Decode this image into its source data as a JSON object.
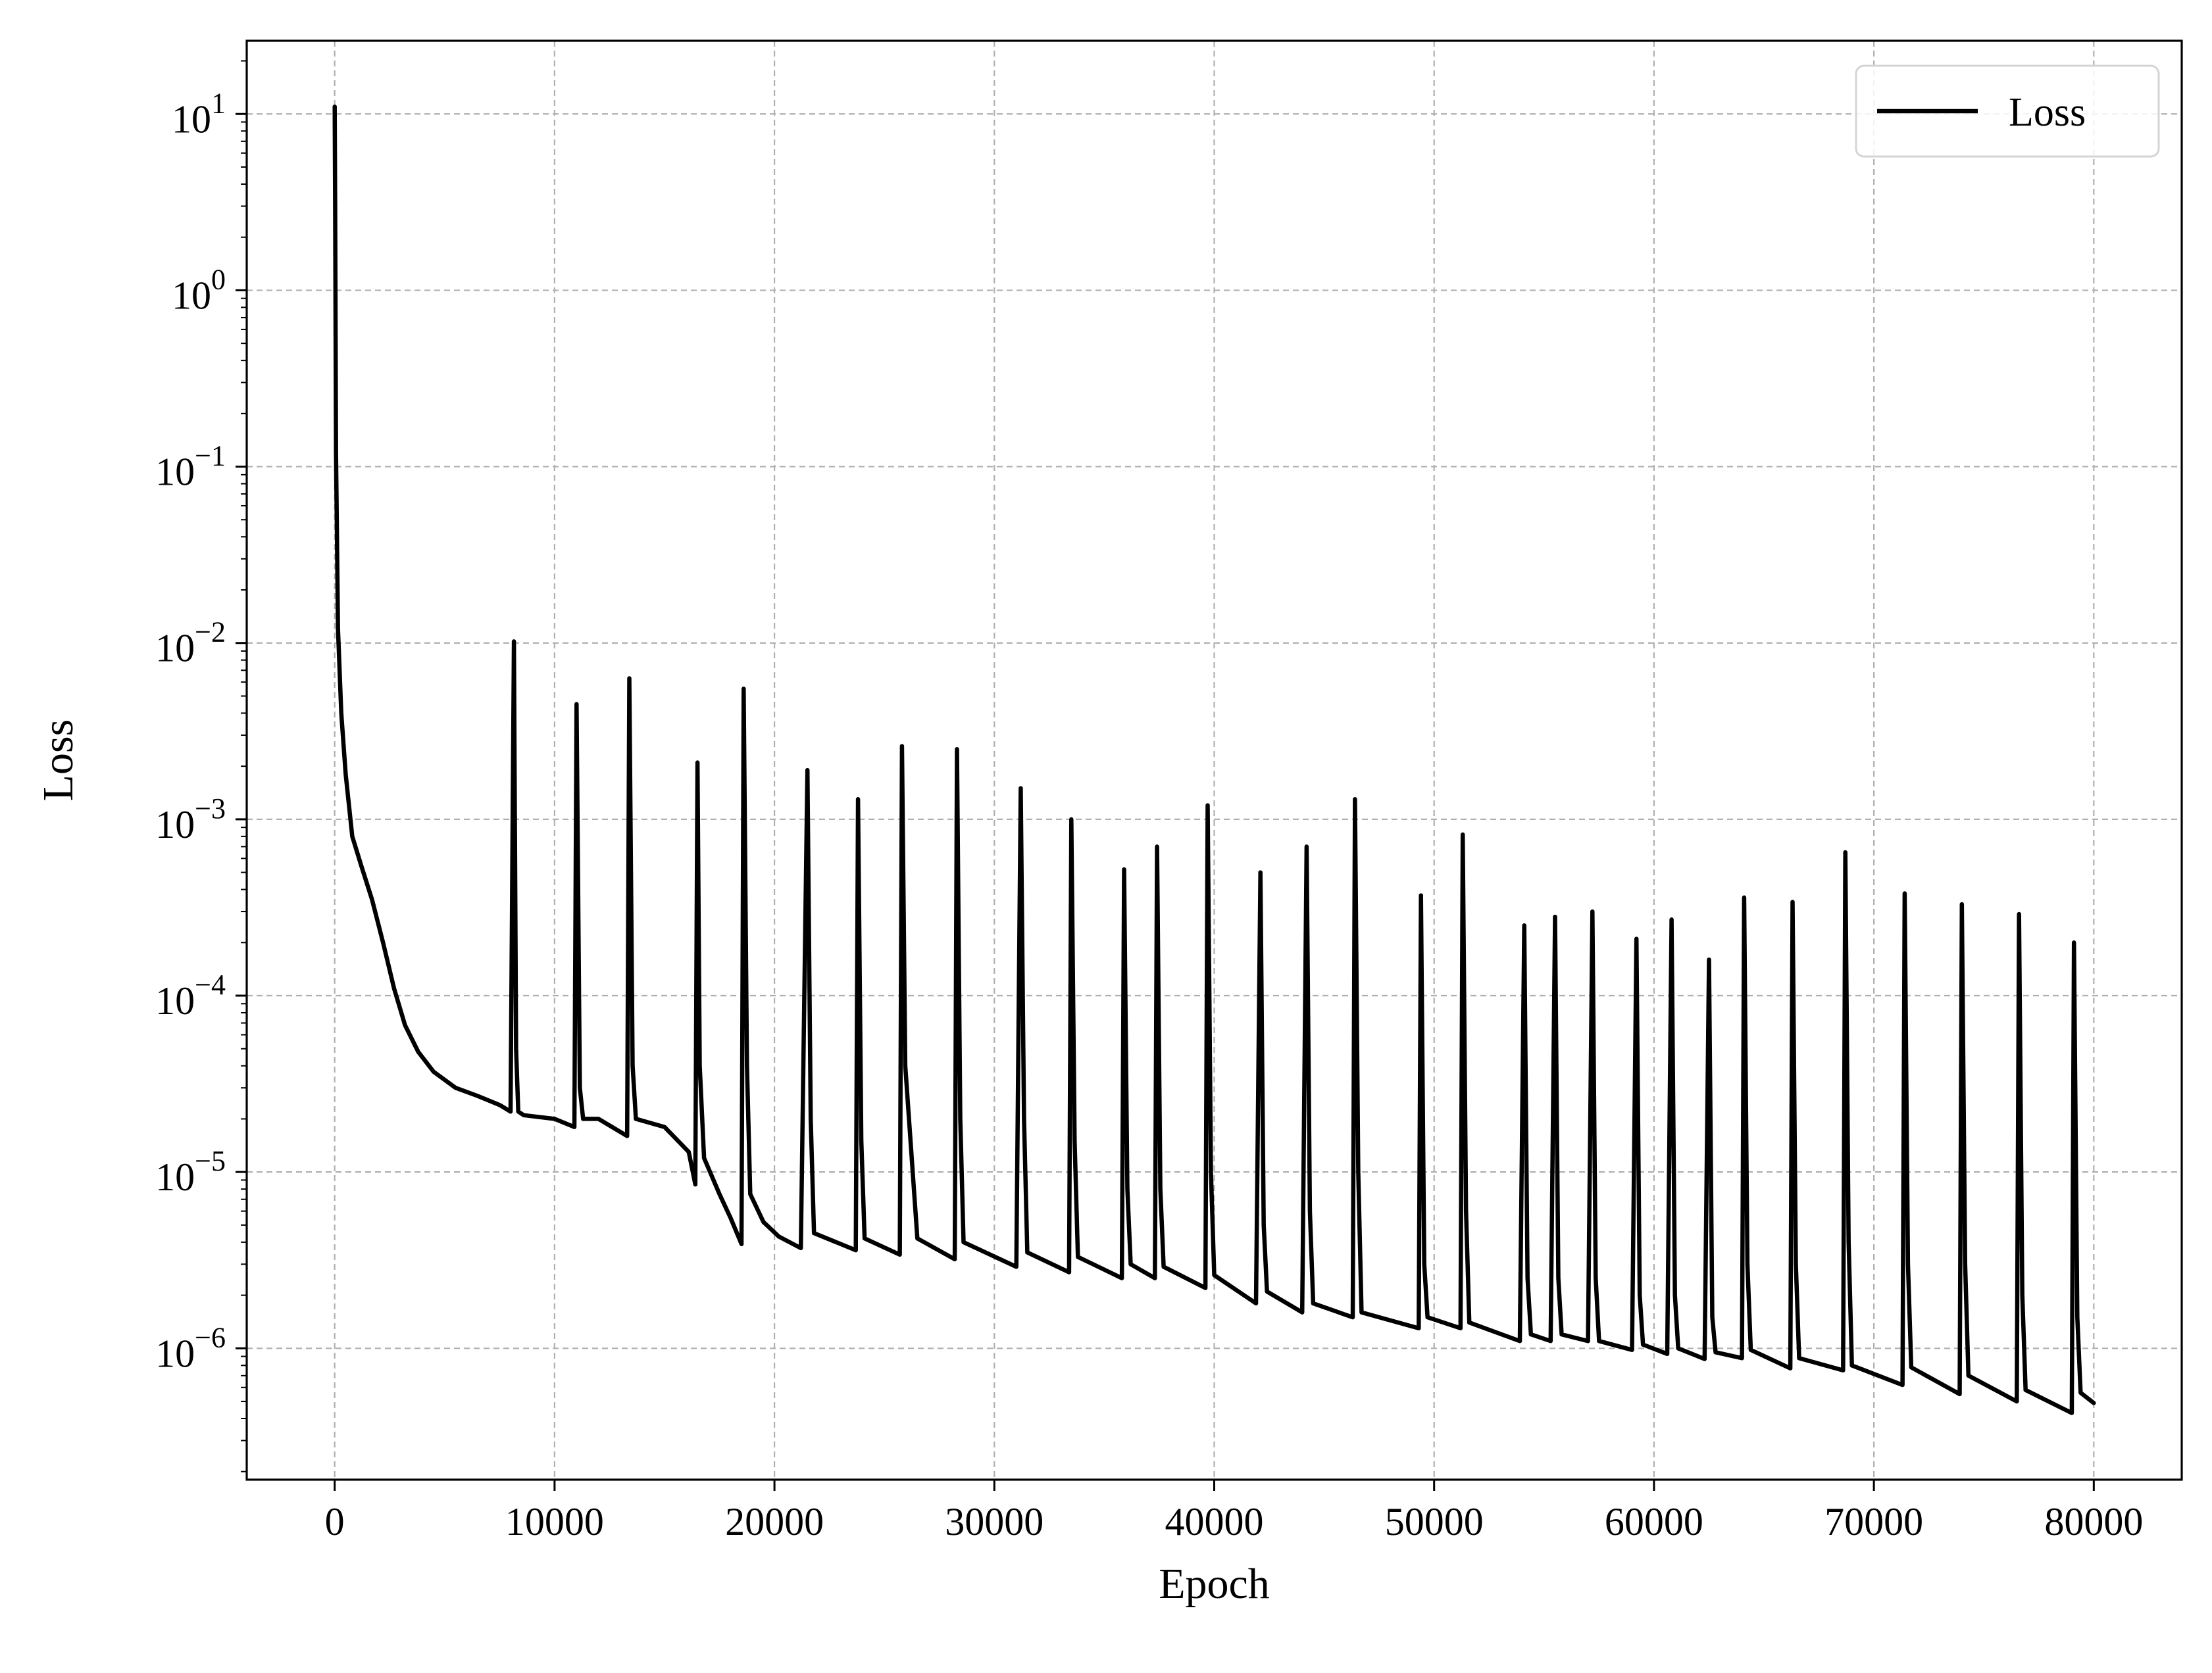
{
  "chart_data": {
    "type": "line",
    "title": "",
    "xlabel": "Epoch",
    "ylabel": "Loss",
    "xlim": [
      -4000,
      84000
    ],
    "ylim": [
      1.8e-07,
      26
    ],
    "yscale": "log",
    "grid": true,
    "legend": {
      "position": "top-right",
      "entries": [
        "Loss"
      ]
    },
    "xticks": [
      0,
      10000,
      20000,
      30000,
      40000,
      50000,
      60000,
      70000,
      80000
    ],
    "xtick_labels": [
      "0",
      "10000",
      "20000",
      "30000",
      "40000",
      "50000",
      "60000",
      "70000",
      "80000"
    ],
    "yticks": [
      {
        "value": 10,
        "base": "10",
        "exp": "1"
      },
      {
        "value": 1,
        "base": "10",
        "exp": "0"
      },
      {
        "value": 0.1,
        "base": "10",
        "exp": "−1"
      },
      {
        "value": 0.01,
        "base": "10",
        "exp": "−2"
      },
      {
        "value": 0.001,
        "base": "10",
        "exp": "−3"
      },
      {
        "value": 0.0001,
        "base": "10",
        "exp": "−4"
      },
      {
        "value": 1e-05,
        "base": "10",
        "exp": "−5"
      },
      {
        "value": 1e-06,
        "base": "10",
        "exp": "−6"
      }
    ],
    "series": [
      {
        "name": "Loss",
        "color": "#000000",
        "x": [
          0,
          20,
          60,
          150,
          300,
          500,
          800,
          1200,
          1700,
          2200,
          2700,
          3200,
          3800,
          4500,
          5500,
          6500,
          7500,
          8000,
          8150,
          8250,
          8350,
          8600,
          10000,
          10900,
          11000,
          11150,
          11300,
          12000,
          13300,
          13400,
          13550,
          13700,
          15000,
          16100,
          16400,
          16500,
          16600,
          16800,
          17500,
          18000,
          18500,
          18600,
          18750,
          18900,
          19500,
          20200,
          21200,
          21500,
          21650,
          21800,
          23700,
          23800,
          23950,
          24100,
          25700,
          25800,
          25950,
          26500,
          28200,
          28300,
          28450,
          28600,
          31000,
          31200,
          31350,
          31500,
          33400,
          33500,
          33650,
          33800,
          35800,
          35900,
          36050,
          36200,
          37300,
          37400,
          37550,
          37700,
          39600,
          39700,
          39850,
          40000,
          41900,
          42100,
          42250,
          42400,
          44000,
          44200,
          44350,
          44500,
          46300,
          46400,
          46550,
          46700,
          49300,
          49400,
          49550,
          49700,
          51200,
          51300,
          51450,
          51600,
          53900,
          54100,
          54250,
          54400,
          55300,
          55500,
          55650,
          55800,
          57000,
          57200,
          57350,
          57500,
          59000,
          59200,
          59350,
          59500,
          60600,
          60800,
          60950,
          61100,
          62300,
          62500,
          62650,
          62800,
          64000,
          64100,
          64250,
          64400,
          66200,
          66300,
          66450,
          66600,
          68600,
          68700,
          68850,
          69000,
          71300,
          71400,
          71550,
          71700,
          73900,
          74000,
          74150,
          74300,
          76500,
          76600,
          76750,
          76900,
          79000,
          79100,
          79250,
          79400,
          80000
        ],
        "y": [
          11,
          3.0,
          0.12,
          0.012,
          0.004,
          0.0018,
          0.0008,
          0.00055,
          0.00035,
          0.0002,
          0.00011,
          6.8e-05,
          4.8e-05,
          3.7e-05,
          3e-05,
          2.7e-05,
          2.4e-05,
          2.2e-05,
          0.0102,
          5e-05,
          2.2e-05,
          2.1e-05,
          2e-05,
          1.8e-05,
          0.0045,
          3e-05,
          2e-05,
          2e-05,
          1.6e-05,
          0.0063,
          4e-05,
          2e-05,
          1.8e-05,
          1.3e-05,
          8.5e-06,
          0.0021,
          4e-05,
          1.2e-05,
          7.5e-06,
          5.5e-06,
          3.9e-06,
          0.0055,
          4e-05,
          7.5e-06,
          5.2e-06,
          4.3e-06,
          3.7e-06,
          0.0019,
          2e-05,
          4.5e-06,
          3.6e-06,
          0.0013,
          1.5e-05,
          4.2e-06,
          3.4e-06,
          0.0026,
          4e-05,
          4.2e-06,
          3.2e-06,
          0.0025,
          2e-05,
          4e-06,
          2.9e-06,
          0.0015,
          2e-05,
          3.5e-06,
          2.7e-06,
          0.001,
          1.5e-05,
          3.3e-06,
          2.5e-06,
          0.00052,
          8e-06,
          3e-06,
          2.5e-06,
          0.0007,
          8e-06,
          2.9e-06,
          2.2e-06,
          0.0012,
          1e-05,
          2.6e-06,
          1.8e-06,
          0.0005,
          5e-06,
          2.1e-06,
          1.6e-06,
          0.0007,
          6e-06,
          1.8e-06,
          1.5e-06,
          0.0013,
          1e-05,
          1.6e-06,
          1.3e-06,
          0.00037,
          3e-06,
          1.5e-06,
          1.3e-06,
          0.00082,
          6e-06,
          1.4e-06,
          1.1e-06,
          0.00025,
          2.5e-06,
          1.2e-06,
          1.1e-06,
          0.00028,
          2.5e-06,
          1.2e-06,
          1.1e-06,
          0.0003,
          2.5e-06,
          1.1e-06,
          9.8e-07,
          0.00021,
          2e-06,
          1.05e-06,
          9.3e-07,
          0.00027,
          2e-06,
          1e-06,
          8.7e-07,
          0.00016,
          1.5e-06,
          9.5e-07,
          8.8e-07,
          0.00036,
          3e-06,
          9.8e-07,
          7.7e-07,
          0.00034,
          3e-06,
          8.8e-07,
          7.5e-07,
          0.00065,
          4e-06,
          8e-07,
          6.2e-07,
          0.00038,
          3e-06,
          7.8e-07,
          5.5e-07,
          0.00033,
          3e-06,
          7e-07,
          5e-07,
          0.00029,
          2e-06,
          5.8e-07,
          4.3e-07,
          0.0002,
          1.5e-06,
          5.6e-07,
          4.9e-07
        ]
      }
    ]
  }
}
